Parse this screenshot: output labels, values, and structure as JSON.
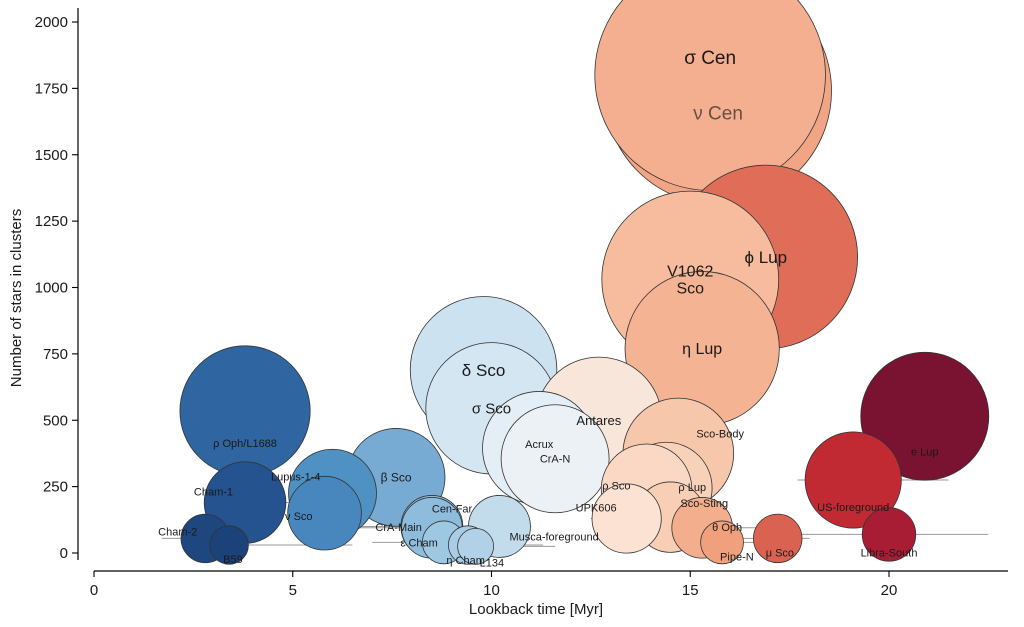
{
  "chart_data": {
    "type": "scatter",
    "xlabel": "Lookback time [Myr]",
    "ylabel": "Number of stars in clusters",
    "xlim": [
      0,
      23
    ],
    "ylim": [
      -30,
      2050
    ],
    "x_ticks": [
      0,
      5,
      10,
      15,
      20
    ],
    "y_ticks": [
      0,
      250,
      500,
      750,
      1000,
      1250,
      1500,
      1750,
      2000
    ],
    "grid": false,
    "size_encoding": "bubble area scales with number of stars",
    "color_encoding": "diverging blue-white-red by lookback time",
    "points": [
      {
        "name": "ρ Oph/L1688",
        "x": 3.8,
        "y": 535,
        "xerr": [
          3.5,
          4.0
        ],
        "color": "#2f65a0"
      },
      {
        "name": "Cham-1",
        "x": 3.8,
        "y": 190,
        "xerr": [
          2.9,
          5.0
        ],
        "color": "#245390"
      },
      {
        "name": "Cham-2",
        "x": 2.8,
        "y": 55,
        "xerr": [
          1.7,
          4.1
        ],
        "color": "#1e467f"
      },
      {
        "name": "B59",
        "x": 3.4,
        "y": 30,
        "xerr": [
          2.5,
          6.5
        ],
        "color": "#1c427a"
      },
      {
        "name": "Lupus-1-4",
        "x": 6.0,
        "y": 225,
        "xerr": [
          5.2,
          7.0
        ],
        "color": "#4f91c2"
      },
      {
        "name": "ν Sco",
        "x": 5.8,
        "y": 150,
        "xerr": [
          5.1,
          7.6
        ],
        "color": "#4887be"
      },
      {
        "name": "β Sco",
        "x": 7.6,
        "y": 285,
        "xerr": [
          7.0,
          8.6
        ],
        "color": "#77abd3"
      },
      {
        "name": "Cen-Far",
        "x": 8.5,
        "y": 100,
        "xerr": [
          6.5,
          10.6
        ],
        "color": "#8ebcdc"
      },
      {
        "name": "CrA-Main",
        "x": 8.5,
        "y": 95,
        "xerr": [
          6.5,
          9.8
        ],
        "color": "#8ebcdc"
      },
      {
        "name": "ε Cham",
        "x": 8.8,
        "y": 40,
        "xerr": [
          7.0,
          10.4
        ],
        "color": "#9ec7e2"
      },
      {
        "name": "η Cham",
        "x": 9.4,
        "y": 30,
        "xerr": [
          7.8,
          11.3
        ],
        "color": "#a9cde5"
      },
      {
        "name": "L134",
        "x": 9.6,
        "y": 25,
        "xerr": [
          8.1,
          11.6
        ],
        "color": "#b0d1e7"
      },
      {
        "name": "Musca-foreground",
        "x": 10.2,
        "y": 100,
        "xerr": [
          8.0,
          11.0
        ],
        "color": "#c3dcec"
      },
      {
        "name": "δ Sco",
        "x": 9.8,
        "y": 690,
        "xerr": [
          8.4,
          11.0
        ],
        "color": "#cce2f0"
      },
      {
        "name": "σ Sco",
        "x": 10.0,
        "y": 545,
        "xerr": [
          9.0,
          11.2
        ],
        "color": "#d3e6f2"
      },
      {
        "name": "Acrux",
        "x": 11.2,
        "y": 395,
        "xerr": [
          10.0,
          12.1
        ],
        "color": "#e4eef6"
      },
      {
        "name": "CrA-N",
        "x": 11.6,
        "y": 355,
        "xerr": [
          10.9,
          12.2
        ],
        "color": "#ecf1f6"
      },
      {
        "name": "Antares",
        "x": 12.7,
        "y": 500,
        "xerr": [
          11.0,
          13.4
        ],
        "color": "#f8e6da"
      },
      {
        "name": "UPK606",
        "x": 13.4,
        "y": 130,
        "xerr": [
          12.5,
          14.5
        ],
        "color": "#fbe2d2"
      },
      {
        "name": "ρ Sco",
        "x": 13.9,
        "y": 240,
        "xerr": [
          13.2,
          14.6
        ],
        "color": "#fad8c4"
      },
      {
        "name": "ρ Lup",
        "x": 14.4,
        "y": 245,
        "xerr": [
          13.6,
          15.1
        ],
        "color": "#f8d1b9"
      },
      {
        "name": "Sco-Sting",
        "x": 14.5,
        "y": 135,
        "xerr": [
          12.6,
          15.9
        ],
        "color": "#f8ceb5"
      },
      {
        "name": "Sco-Body",
        "x": 14.7,
        "y": 375,
        "xerr": [
          14.1,
          15.5
        ],
        "color": "#f7c7ab"
      },
      {
        "name": "V1062 Sco",
        "x": 15.0,
        "y": 1030,
        "xerr": [
          13.6,
          15.4
        ],
        "color": "#f6bc9d"
      },
      {
        "name": "η Lup",
        "x": 15.3,
        "y": 770,
        "xerr": [
          14.6,
          15.8
        ],
        "color": "#f4b393"
      },
      {
        "name": "θ Oph",
        "x": 15.3,
        "y": 95,
        "xerr": [
          13.5,
          17.0
        ],
        "color": "#f3ae8d"
      },
      {
        "name": "Pipe-N",
        "x": 15.8,
        "y": 40,
        "xerr": [
          13.8,
          16.6
        ],
        "color": "#f0a07c"
      },
      {
        "name": "σ Cen",
        "x": 15.5,
        "y": 1800,
        "xerr": [
          15.0,
          16.0
        ],
        "color": "#f4ae90"
      },
      {
        "name": "ν Cen",
        "x": 15.7,
        "y": 1740,
        "xerr": [
          15.2,
          16.1
        ],
        "color": "#f2a584"
      },
      {
        "name": "ϕ Lup",
        "x": 16.9,
        "y": 1115,
        "xerr": [
          16.3,
          17.4
        ],
        "color": "#df6d58"
      },
      {
        "name": "μ Sco",
        "x": 17.2,
        "y": 55,
        "xerr": [
          14.8,
          18.0
        ],
        "color": "#d96350"
      },
      {
        "name": "US-foreground",
        "x": 19.1,
        "y": 275,
        "xerr": [
          17.7,
          21.5
        ],
        "color": "#c12a33"
      },
      {
        "name": "Libra-South",
        "x": 20.0,
        "y": 70,
        "xerr": [
          17.7,
          22.5
        ],
        "color": "#a91d34"
      },
      {
        "name": "e Lup",
        "x": 20.9,
        "y": 515,
        "xerr": [
          20.1,
          21.6
        ],
        "color": "#7a1232"
      }
    ]
  }
}
